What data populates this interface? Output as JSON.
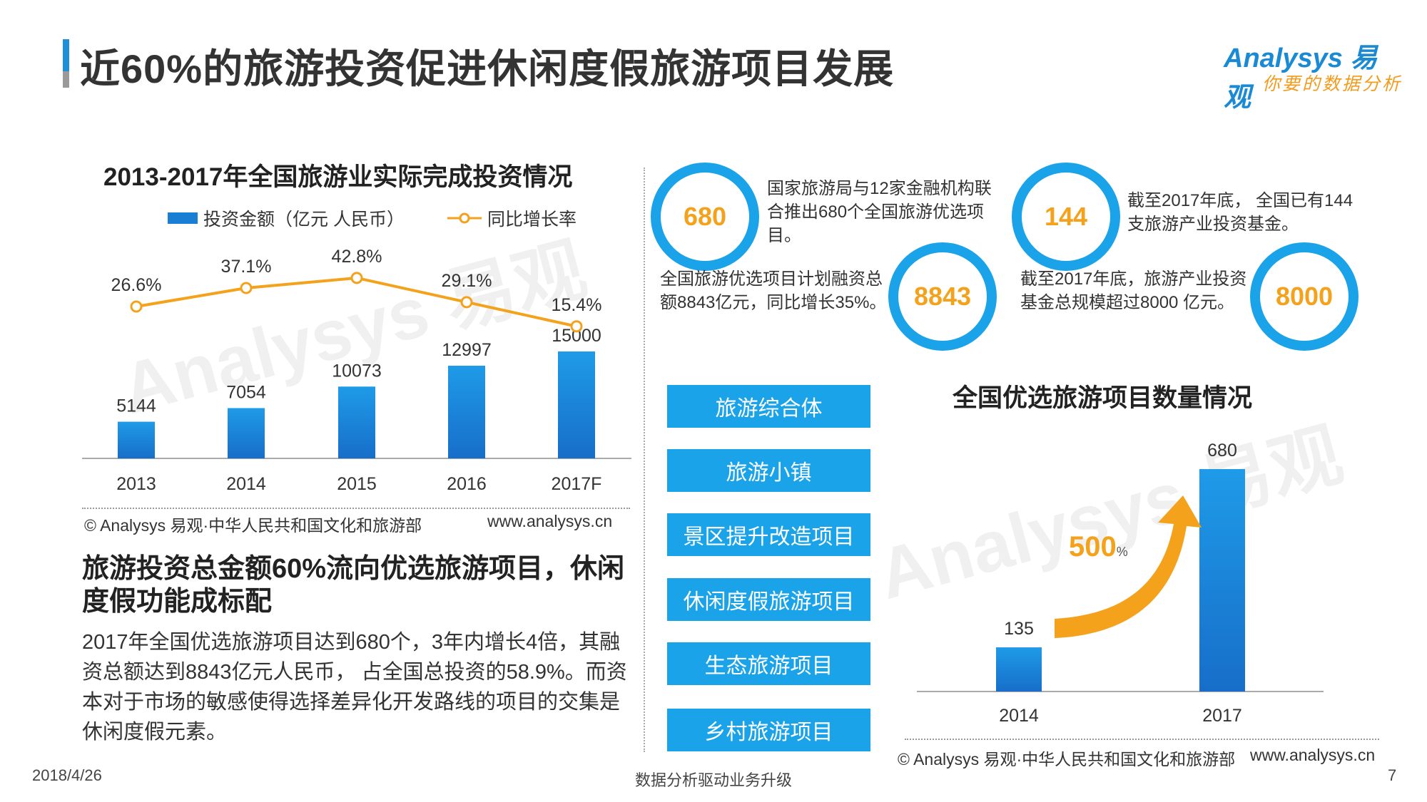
{
  "header": {
    "title": "近60%的旅游投资促进休闲度假旅游项目发展",
    "logo_brand": "Analysys 易观",
    "logo_slogan": "你要的数据分析"
  },
  "chart_data": [
    {
      "type": "bar",
      "title": "2013-2017年全国旅游业实际完成投资情况",
      "categories": [
        "2013",
        "2014",
        "2015",
        "2016",
        "2017F"
      ],
      "series": [
        {
          "name": "投资金额（亿元 人民币）",
          "type": "bar",
          "values": [
            5144,
            7054,
            10073,
            12997,
            15000
          ],
          "labels": [
            "5144",
            "7054",
            "10073",
            "12997",
            "15000"
          ]
        },
        {
          "name": "同比增长率",
          "type": "line",
          "values": [
            26.6,
            37.1,
            42.8,
            29.1,
            15.4
          ],
          "labels": [
            "26.6%",
            "37.1%",
            "42.8%",
            "29.1%",
            "15.4%"
          ]
        }
      ],
      "colors": {
        "bar": "#1a7fd4",
        "line": "#f4a21c"
      },
      "source_left": "© Analysys 易观·中华人民共和国文化和旅游部",
      "source_right": "www.analysys.cn"
    },
    {
      "type": "bar",
      "title": "全国优选旅游项目数量情况",
      "categories": [
        "2014",
        "2017"
      ],
      "values": [
        135,
        680
      ],
      "labels": [
        "135",
        "680"
      ],
      "annotation": "500",
      "annotation_unit": "%",
      "colors": {
        "bar": "#1a7fd4",
        "arrow": "#f4a21c"
      },
      "source_left": "© Analysys 易观·中华人民共和国文化和旅游部",
      "source_right": "www.analysys.cn"
    }
  ],
  "summary": {
    "heading": "旅游投资总金额60%流向优选旅游项目，休闲度假功能成标配",
    "paragraph": "2017年全国优选旅游项目达到680个，3年内增长4倍，其融资总额达到8843亿元人民币， 占全国总投资的58.9%。而资本对于市场的敏感使得选择差异化开发路线的项目的交集是休闲度假元素。"
  },
  "stats": [
    {
      "value": "680",
      "text": "国家旅游局与12家金融机构联合推出680个全国旅游优选项目。"
    },
    {
      "value": "8843",
      "text": "全国旅游优选项目计划融资总额8843亿元，同比增长35%。"
    },
    {
      "value": "144",
      "text": "截至2017年底， 全国已有144支旅游产业投资基金。"
    },
    {
      "value": "8000",
      "text": "截至2017年底，旅游产业投资基金总规模超过8000 亿元。"
    }
  ],
  "categories_list": [
    "旅游综合体",
    "旅游小镇",
    "景区提升改造项目",
    "休闲度假旅游项目",
    "生态旅游项目",
    "乡村旅游项目"
  ],
  "footer": {
    "date": "2018/4/26",
    "center": "数据分析驱动业务升级",
    "page": "7"
  }
}
